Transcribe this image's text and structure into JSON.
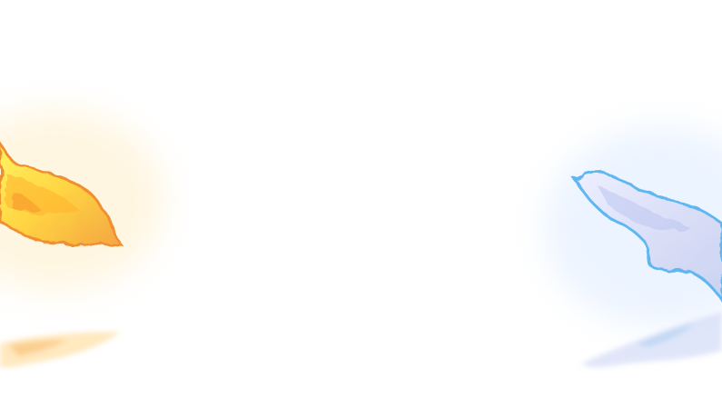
{
  "scene": {
    "description_colors": {
      "background": "#ffffff",
      "fire_core": "#ffe23a",
      "fire_edge": "#f29a2e",
      "ice_core": "#d9ddf7",
      "ice_edge": "#5cb7f2"
    },
    "elements": [
      "fire-burst",
      "fire-reflection",
      "ice-burst",
      "ice-reflection"
    ]
  }
}
